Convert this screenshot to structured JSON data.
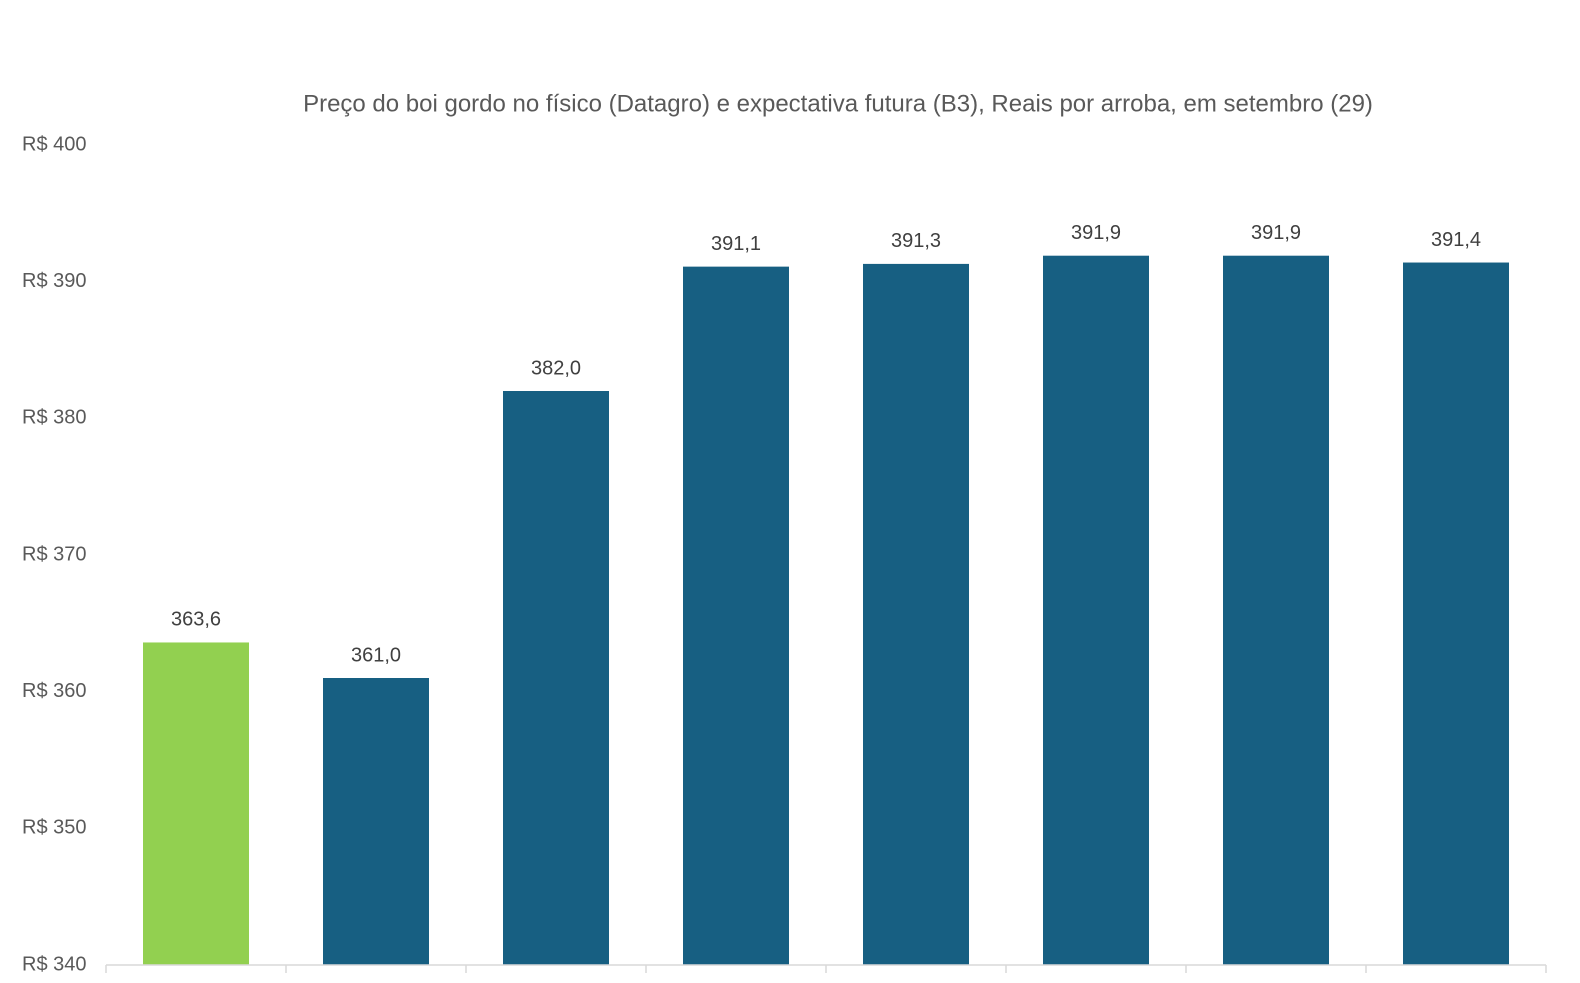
{
  "chart_data": {
    "type": "bar",
    "title": "Preço do boi gordo no físico (Datagro)  e expectativa futura (B3), Reais por arroba, em setembro (29)",
    "categories": [
      null,
      null,
      null,
      null,
      null,
      null,
      null,
      null
    ],
    "values": [
      363.6,
      361.0,
      382.0,
      391.1,
      391.3,
      391.9,
      391.9,
      391.4
    ],
    "value_labels": [
      "363,6",
      "361,0",
      "382,0",
      "391,1",
      "391,3",
      "391,9",
      "391,9",
      "391,4"
    ],
    "colors": [
      "#92d050",
      "#175f82",
      "#175f82",
      "#175f82",
      "#175f82",
      "#175f82",
      "#175f82",
      "#175f82"
    ],
    "ylim": [
      340,
      400
    ],
    "yticks": [
      {
        "value": 340,
        "label": "R$ 340"
      },
      {
        "value": 350,
        "label": "R$ 350"
      },
      {
        "value": 360,
        "label": "R$ 360"
      },
      {
        "value": 370,
        "label": "R$ 370"
      },
      {
        "value": 380,
        "label": "R$ 380"
      },
      {
        "value": 390,
        "label": "R$ 390"
      },
      {
        "value": 400,
        "label": "R$ 400"
      }
    ],
    "grid": false
  }
}
